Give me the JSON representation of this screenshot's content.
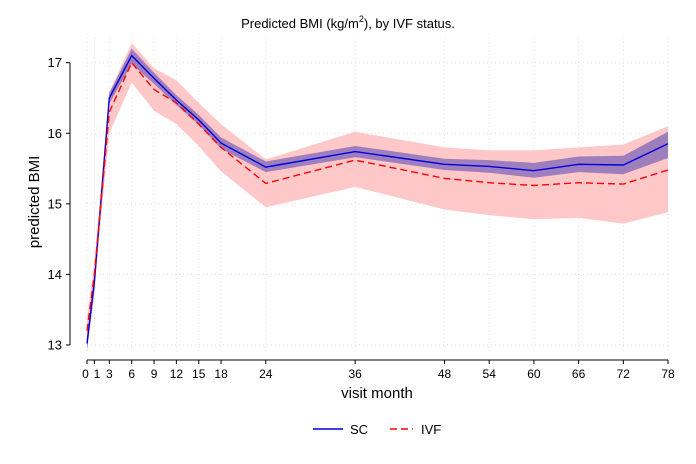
{
  "chart_data": {
    "type": "line",
    "title_main": "Predicted BMI (kg/m",
    "title_sup": "2",
    "title_rest": "), by IVF status.",
    "xlabel": "visit month",
    "ylabel": "predicted BMI",
    "x": [
      0,
      1,
      3,
      6,
      9,
      12,
      15,
      18,
      24,
      36,
      48,
      54,
      60,
      66,
      72,
      78
    ],
    "x_ticks": [
      0,
      1,
      3,
      6,
      9,
      12,
      15,
      18,
      24,
      36,
      48,
      54,
      60,
      66,
      72,
      78
    ],
    "x_tick_labels": [
      "0",
      "1",
      "3",
      "6",
      "9",
      "12",
      "15",
      "18",
      "24",
      "36",
      "48",
      "54",
      "60",
      "66",
      "72",
      "78"
    ],
    "xlim": [
      0,
      78
    ],
    "y_ticks": [
      13,
      14,
      15,
      16,
      17
    ],
    "y_tick_labels": [
      "13",
      "14",
      "15",
      "16",
      "17"
    ],
    "ylim": [
      12.9,
      17.35
    ],
    "grid": true,
    "legend_position": "bottom-center",
    "series": [
      {
        "name": "SC",
        "color": "#0000dd",
        "dash": "solid",
        "band_color": "#7d66b8",
        "values": [
          13.02,
          13.9,
          16.5,
          17.1,
          16.78,
          16.47,
          16.19,
          15.86,
          15.52,
          15.74,
          15.56,
          15.53,
          15.47,
          15.56,
          15.55,
          15.85
        ],
        "ci_lower": [
          12.92,
          13.75,
          16.42,
          16.98,
          16.7,
          16.4,
          16.12,
          15.78,
          15.45,
          15.66,
          15.48,
          15.44,
          15.37,
          15.45,
          15.42,
          15.65
        ],
        "ci_upper": [
          13.1,
          14.02,
          16.57,
          17.2,
          16.86,
          16.54,
          16.26,
          15.94,
          15.6,
          15.82,
          15.64,
          15.62,
          15.58,
          15.67,
          15.68,
          16.02
        ]
      },
      {
        "name": "IVF",
        "color": "#ff0000",
        "dash": "dashed",
        "band_color": "#ffc8c8",
        "values": [
          13.2,
          14.0,
          16.3,
          17.0,
          16.62,
          16.43,
          16.13,
          15.8,
          15.29,
          15.62,
          15.36,
          15.3,
          15.26,
          15.3,
          15.28,
          15.48
        ],
        "ci_lower": [
          13.05,
          13.82,
          16.0,
          16.72,
          16.32,
          16.13,
          15.82,
          15.46,
          14.95,
          15.24,
          14.92,
          14.84,
          14.78,
          14.8,
          14.72,
          14.88
        ],
        "ci_upper": [
          13.38,
          14.18,
          16.58,
          17.28,
          16.92,
          16.75,
          16.43,
          16.13,
          15.63,
          16.02,
          15.8,
          15.76,
          15.76,
          15.8,
          15.84,
          16.1
        ]
      }
    ]
  }
}
